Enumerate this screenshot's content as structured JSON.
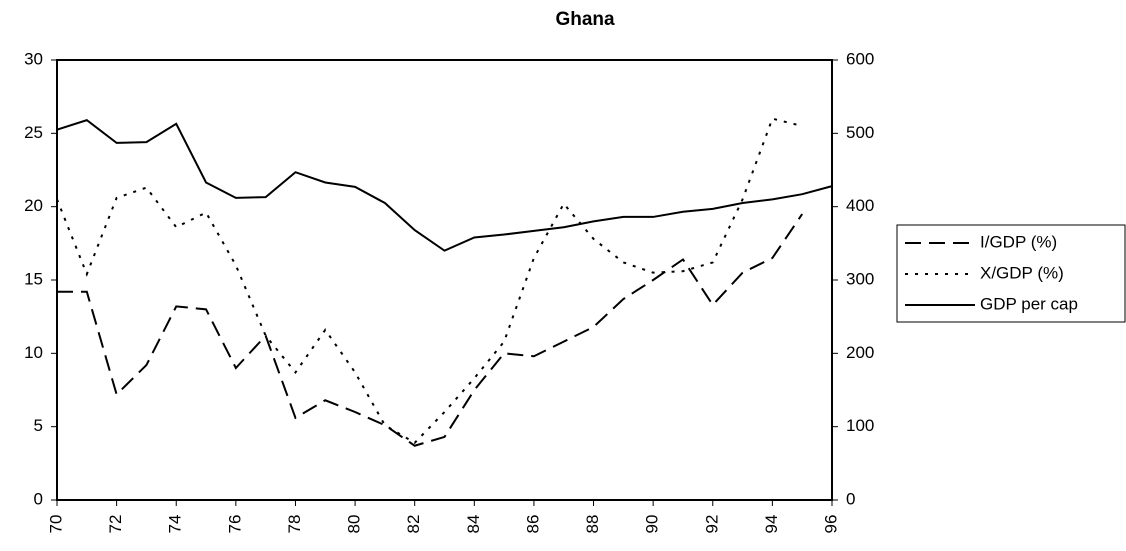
{
  "chart_data": {
    "type": "line",
    "title": "Ghana",
    "x": [
      70,
      71,
      72,
      73,
      74,
      75,
      76,
      77,
      78,
      79,
      80,
      81,
      82,
      83,
      84,
      85,
      86,
      87,
      88,
      89,
      90,
      91,
      92,
      93,
      94,
      95,
      96
    ],
    "xlim": [
      70,
      96
    ],
    "xticks": [
      70,
      72,
      74,
      76,
      78,
      80,
      82,
      84,
      86,
      88,
      90,
      92,
      94,
      96
    ],
    "ylim": [
      0,
      30
    ],
    "yticks": [
      0,
      5,
      10,
      15,
      20,
      25,
      30
    ],
    "y2lim": [
      0,
      600
    ],
    "y2ticks": [
      0,
      100,
      200,
      300,
      400,
      500,
      600
    ],
    "series": [
      {
        "name": "I/GDP (%)",
        "color": "#000000",
        "dash": "16,8",
        "values": [
          14.2,
          14.2,
          7.2,
          9.2,
          13.2,
          13.0,
          9.0,
          11.2,
          5.6,
          6.8,
          6.0,
          5.1,
          3.7,
          4.3,
          7.5,
          10.0,
          9.8,
          10.8,
          11.8,
          13.7,
          15.0,
          16.4,
          13.3,
          15.5,
          16.5,
          19.5,
          null
        ]
      },
      {
        "name": "X/GDP (%)",
        "color": "#000000",
        "dash": "3,7",
        "values": [
          20.5,
          15.4,
          20.6,
          21.3,
          18.6,
          19.6,
          16.0,
          11.2,
          8.7,
          11.6,
          8.7,
          5.1,
          3.9,
          6.0,
          8.3,
          10.8,
          16.5,
          20.2,
          17.8,
          16.2,
          15.5,
          15.6,
          16.2,
          20.5,
          26.0,
          25.5,
          null
        ]
      },
      {
        "name": "GDP per cap",
        "color": "#000000",
        "dash": "none",
        "axis": "y2",
        "values": [
          505,
          518,
          487,
          488,
          513,
          433,
          412,
          413,
          447,
          433,
          427,
          405,
          368,
          340,
          358,
          362,
          367,
          372,
          380,
          386,
          386,
          393,
          397,
          405,
          410,
          417,
          428
        ]
      }
    ]
  }
}
